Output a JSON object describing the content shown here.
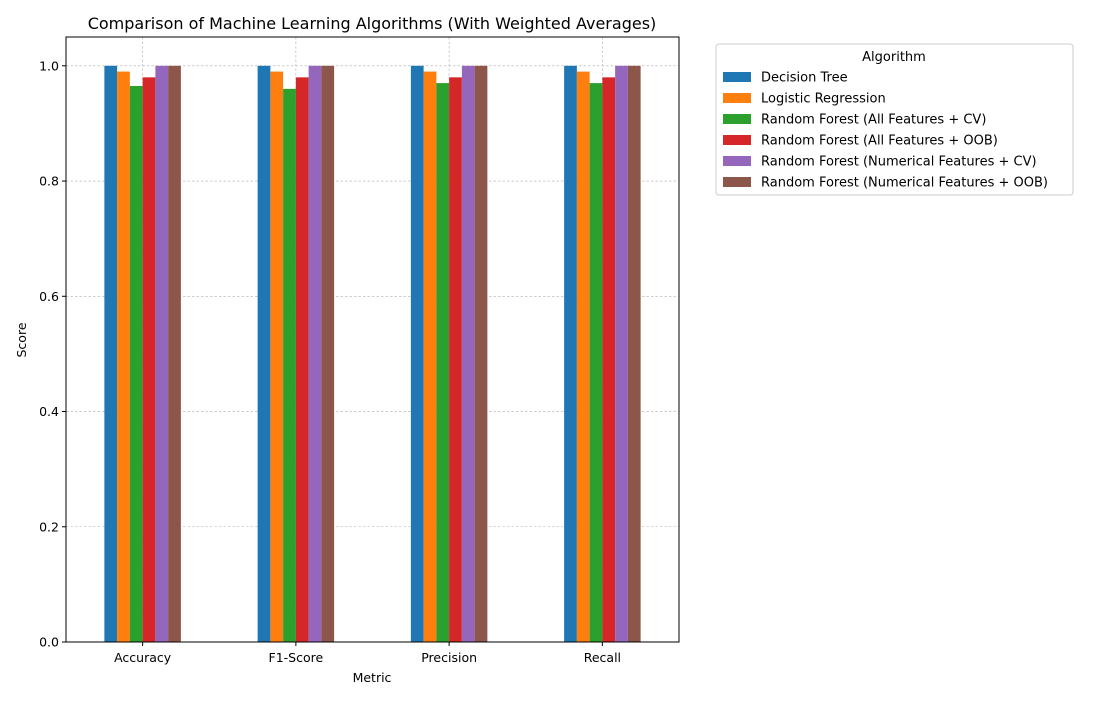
{
  "chart_data": {
    "type": "bar",
    "title": "Comparison of Machine Learning Algorithms (With Weighted Averages)",
    "xlabel": "Metric",
    "ylabel": "Score",
    "categories": [
      "Accuracy",
      "F1-Score",
      "Precision",
      "Recall"
    ],
    "ylim": [
      0,
      1.05
    ],
    "yticks": [
      "0.0",
      "0.2",
      "0.4",
      "0.6",
      "0.8",
      "1.0"
    ],
    "grid": true,
    "legend": {
      "title": "Algorithm",
      "placement": "outside-top-right"
    },
    "series": [
      {
        "name": "Decision Tree",
        "color": "#1f77b4",
        "values": [
          1.0,
          1.0,
          1.0,
          1.0
        ]
      },
      {
        "name": "Logistic Regression",
        "color": "#ff7f0e",
        "values": [
          0.99,
          0.99,
          0.99,
          0.99
        ]
      },
      {
        "name": "Random Forest (All Features + CV)",
        "color": "#2ca02c",
        "values": [
          0.965,
          0.96,
          0.97,
          0.97
        ]
      },
      {
        "name": "Random Forest (All Features + OOB)",
        "color": "#d62728",
        "values": [
          0.98,
          0.98,
          0.98,
          0.98
        ]
      },
      {
        "name": "Random Forest (Numerical Features + CV)",
        "color": "#9467bd",
        "values": [
          1.0,
          1.0,
          1.0,
          1.0
        ]
      },
      {
        "name": "Random Forest (Numerical Features + OOB)",
        "color": "#8c564b",
        "values": [
          1.0,
          1.0,
          1.0,
          1.0
        ]
      }
    ]
  }
}
